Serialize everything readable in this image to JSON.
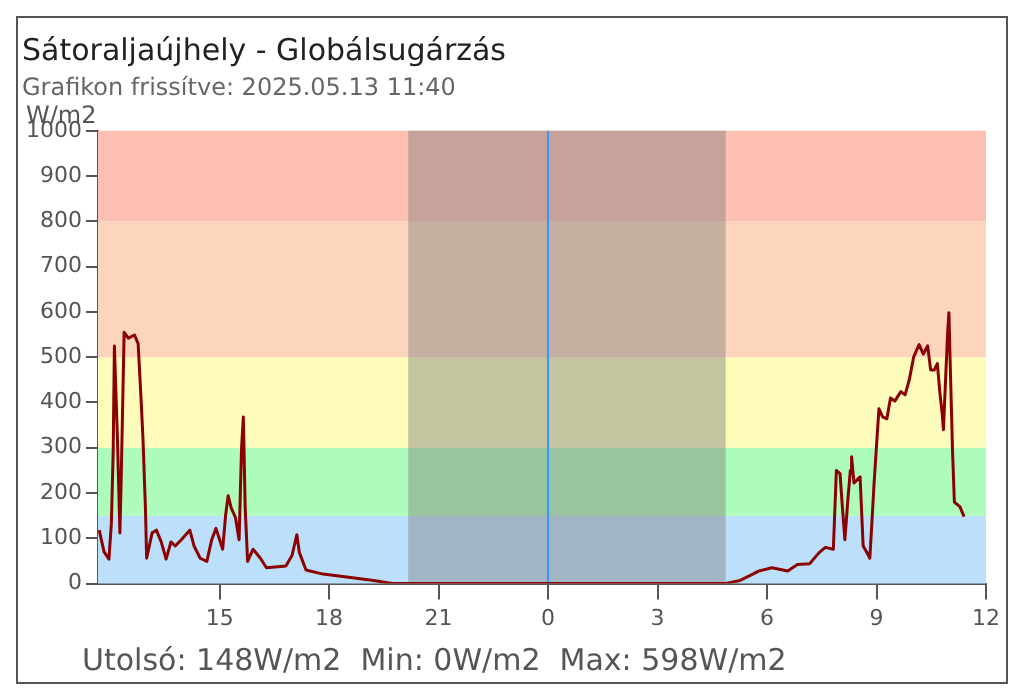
{
  "chart_data": {
    "type": "line",
    "title": "Sátoraljaújhely - Globálsugárzás",
    "subtitle": "Grafikon frissítve: 2025.05.13 11:40",
    "ylabel": "W/m2",
    "annotations": [
      "Utolsó: 148W/m2  Min: 0W/m2  Max: 598W/m2"
    ],
    "xlim": [
      "2025-05-12T11:40",
      "2025-05-13T12:00"
    ],
    "xticks": [
      {
        "value": "2025-05-12T15:00",
        "label": "15"
      },
      {
        "value": "2025-05-12T18:00",
        "label": "18"
      },
      {
        "value": "2025-05-12T21:00",
        "label": "21"
      },
      {
        "value": "2025-05-13T00:00",
        "label": "0"
      },
      {
        "value": "2025-05-13T03:00",
        "label": "3"
      },
      {
        "value": "2025-05-13T06:00",
        "label": "6"
      },
      {
        "value": "2025-05-13T09:00",
        "label": "9"
      },
      {
        "value": "2025-05-13T12:00",
        "label": "12"
      }
    ],
    "ylim": [
      0,
      1000
    ],
    "yticks": [
      0,
      100,
      200,
      300,
      400,
      500,
      600,
      700,
      800,
      900,
      1000
    ],
    "grid": false,
    "legend": false,
    "marker": "none",
    "line_style": "solid",
    "bands": [
      {
        "axis": "y",
        "from": 0,
        "to": 150,
        "color": "#bce0fb"
      },
      {
        "axis": "y",
        "from": 150,
        "to": 300,
        "color": "#adfcbb"
      },
      {
        "axis": "y",
        "from": 300,
        "to": 500,
        "color": "#fefcbb"
      },
      {
        "axis": "y",
        "from": 500,
        "to": 800,
        "color": "#fdd5bc"
      },
      {
        "axis": "y",
        "from": 800,
        "to": 1000,
        "color": "#fec0b2"
      },
      {
        "axis": "x",
        "from": "2025-05-12T20:10",
        "to": "2025-05-13T04:52",
        "color": "#808080"
      }
    ],
    "ref_lines": [
      {
        "axis": "x",
        "value": "2025-05-13T00:00",
        "color": "#3399ff"
      }
    ],
    "series": [
      {
        "color": "#8b0000",
        "x": [
          "2025-05-12T11:42",
          "2025-05-12T11:50",
          "2025-05-12T11:58",
          "2025-05-12T12:02",
          "2025-05-12T12:05",
          "2025-05-12T12:07",
          "2025-05-12T12:12",
          "2025-05-12T12:16",
          "2025-05-12T12:18",
          "2025-05-12T12:23",
          "2025-05-12T12:30",
          "2025-05-12T12:40",
          "2025-05-12T12:46",
          "2025-05-12T12:51",
          "2025-05-12T12:54",
          "2025-05-12T12:58",
          "2025-05-12T13:00",
          "2025-05-12T13:09",
          "2025-05-12T13:16",
          "2025-05-12T13:24",
          "2025-05-12T13:32",
          "2025-05-12T13:40",
          "2025-05-12T13:47",
          "2025-05-12T13:57",
          "2025-05-12T14:11",
          "2025-05-12T14:18",
          "2025-05-12T14:28",
          "2025-05-12T14:39",
          "2025-05-12T14:47",
          "2025-05-12T14:54",
          "2025-05-12T15:05",
          "2025-05-12T15:10",
          "2025-05-12T15:14",
          "2025-05-12T15:19",
          "2025-05-12T15:26",
          "2025-05-12T15:32",
          "2025-05-12T15:36",
          "2025-05-12T15:39",
          "2025-05-12T15:42",
          "2025-05-12T15:46",
          "2025-05-12T15:55",
          "2025-05-12T16:07",
          "2025-05-12T16:17",
          "2025-05-12T16:49",
          "2025-05-12T16:59",
          "2025-05-12T17:07",
          "2025-05-12T17:11",
          "2025-05-12T17:22",
          "2025-05-12T17:50",
          "2025-05-12T18:32",
          "2025-05-12T19:13",
          "2025-05-12T19:44",
          "2025-05-13T00:00",
          "2025-05-13T04:50",
          "2025-05-13T05:16",
          "2025-05-13T05:47",
          "2025-05-13T06:08",
          "2025-05-13T06:34",
          "2025-05-13T06:50",
          "2025-05-13T07:10",
          "2025-05-13T07:26",
          "2025-05-13T07:36",
          "2025-05-13T07:49",
          "2025-05-13T07:54",
          "2025-05-13T08:00",
          "2025-05-13T08:04",
          "2025-05-13T08:08",
          "2025-05-13T08:13",
          "2025-05-13T08:17",
          "2025-05-13T08:19",
          "2025-05-13T08:23",
          "2025-05-13T08:28",
          "2025-05-13T08:33",
          "2025-05-13T08:38",
          "2025-05-13T08:44",
          "2025-05-13T08:49",
          "2025-05-13T08:52",
          "2025-05-13T08:56",
          "2025-05-13T09:01",
          "2025-05-13T09:04",
          "2025-05-13T09:10",
          "2025-05-13T09:17",
          "2025-05-13T09:23",
          "2025-05-13T09:30",
          "2025-05-13T09:40",
          "2025-05-13T09:47",
          "2025-05-13T09:54",
          "2025-05-13T10:01",
          "2025-05-13T10:10",
          "2025-05-13T10:17",
          "2025-05-13T10:24",
          "2025-05-13T10:29",
          "2025-05-13T10:35",
          "2025-05-13T10:40",
          "2025-05-13T10:44",
          "2025-05-13T10:48",
          "2025-05-13T10:50",
          "2025-05-13T10:54",
          "2025-05-13T10:57",
          "2025-05-13T10:59",
          "2025-05-13T11:01",
          "2025-05-13T11:05",
          "2025-05-13T11:08",
          "2025-05-13T11:17",
          "2025-05-13T11:24"
        ],
        "values": [
          118,
          70,
          54,
          133,
          292,
          525,
          320,
          112,
          222,
          555,
          542,
          549,
          530,
          403,
          319,
          167,
          56,
          112,
          118,
          92,
          54,
          92,
          83,
          97,
          118,
          83,
          56,
          49,
          97,
          122,
          76,
          153,
          194,
          167,
          146,
          97,
          299,
          368,
          167,
          49,
          76,
          56,
          35,
          39,
          62,
          108,
          69,
          30,
          21,
          14,
          7,
          0,
          0,
          0,
          7,
          28,
          35,
          28,
          42,
          44,
          69,
          80,
          76,
          250,
          243,
          167,
          97,
          187,
          250,
          280,
          222,
          229,
          236,
          83,
          69,
          56,
          125,
          222,
          326,
          386,
          368,
          364,
          410,
          403,
          424,
          417,
          451,
          500,
          528,
          507,
          525,
          472,
          472,
          486,
          424,
          375,
          340,
          465,
          555,
          598,
          493,
          292,
          180,
          170,
          148
        ]
      }
    ]
  }
}
